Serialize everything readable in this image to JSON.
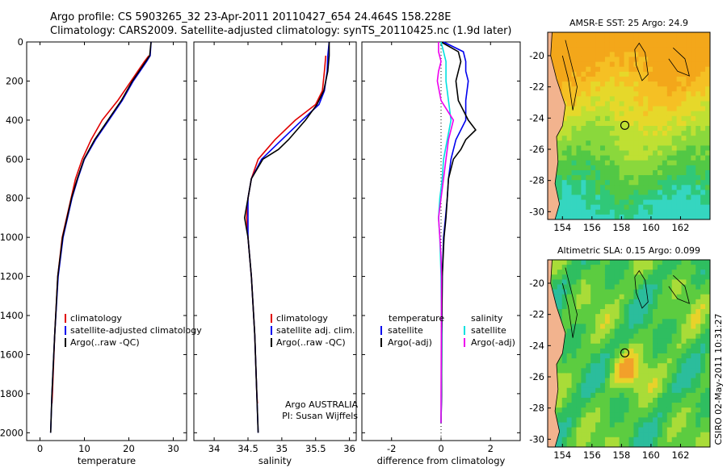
{
  "title_line1": "Argo profile: CS 5903265_32 23-Apr-2011 20110427_654 24.464S 158.228E",
  "title_line2": "Climatology: CARS2009. Satellite-adjusted climatology: synTS_20110425.nc (1.9d later)",
  "credit": "CSIRO 02-May-2011 10:31:27",
  "argo_note": [
    "Argo AUSTRALIA",
    "PI: Susan Wijffels"
  ],
  "colors": {
    "climatology": "#e00000",
    "satellite": "#0000ee",
    "argo": "#000000",
    "satellite_diff_sal": "#00e0e0",
    "argo_diff_sal": "#ee00ee"
  },
  "chart_data": [
    {
      "type": "line",
      "xlabel": "temperature",
      "xlim": [
        -3,
        33
      ],
      "xticks": [
        0,
        10,
        20,
        30
      ],
      "ylim": [
        2040,
        0
      ],
      "yticks": [
        0,
        200,
        400,
        600,
        800,
        1000,
        1200,
        1400,
        1600,
        1800,
        2000
      ],
      "legend_placement": "center-right",
      "series": [
        {
          "name": "climatology",
          "color": "#e00000",
          "depth": [
            70,
            100,
            150,
            200,
            300,
            400,
            500,
            600,
            700,
            800,
            1000,
            1200,
            1500,
            1800,
            1850
          ],
          "values": [
            24.5,
            23.5,
            22,
            20.5,
            17.5,
            14,
            11.5,
            9.5,
            8,
            7,
            5,
            4,
            3.3,
            2.8,
            2.7
          ]
        },
        {
          "name": "satellite-adjusted climatology",
          "color": "#0000ee",
          "depth": [
            0,
            70,
            100,
            150,
            200,
            300,
            400,
            500,
            600,
            700,
            800,
            1000,
            1200,
            1500,
            1800,
            2000
          ],
          "values": [
            25,
            24.8,
            24,
            22.5,
            21,
            18.5,
            15.5,
            12.5,
            10,
            8.5,
            7.2,
            5.2,
            4.1,
            3.3,
            2.7,
            2.4
          ]
        },
        {
          "name": "Argo(..raw -QC)",
          "color": "#000000",
          "depth": [
            0,
            70,
            100,
            150,
            200,
            300,
            400,
            500,
            600,
            700,
            800,
            1000,
            1200,
            1500,
            1800,
            2000
          ],
          "values": [
            25,
            24.7,
            23.8,
            22.3,
            20.8,
            18.3,
            15.3,
            12.3,
            9.9,
            8.4,
            7.1,
            5.1,
            4.0,
            3.3,
            2.7,
            2.4
          ]
        }
      ]
    },
    {
      "type": "line",
      "xlabel": "salinity",
      "xlim": [
        33.7,
        36.1
      ],
      "xticks": [
        34,
        34.5,
        35,
        35.5,
        36
      ],
      "ylim": [
        2040,
        0
      ],
      "legend_placement": "center-right",
      "series": [
        {
          "name": "climatology",
          "color": "#e00000",
          "depth": [
            70,
            150,
            250,
            320,
            400,
            500,
            600,
            700,
            800,
            900,
            1000,
            1200,
            1500,
            1800,
            1850
          ],
          "values": [
            35.65,
            35.63,
            35.6,
            35.5,
            35.2,
            34.9,
            34.65,
            34.55,
            34.5,
            34.48,
            34.5,
            34.55,
            34.6,
            34.63,
            34.64
          ]
        },
        {
          "name": "satellite adj. clim.",
          "color": "#0000ee",
          "depth": [
            0,
            70,
            150,
            250,
            320,
            400,
            500,
            600,
            700,
            800,
            900,
            1000,
            1200,
            1500,
            1800,
            2000
          ],
          "values": [
            35.7,
            35.68,
            35.67,
            35.63,
            35.55,
            35.3,
            35,
            34.7,
            34.55,
            34.5,
            34.5,
            34.5,
            34.55,
            34.6,
            34.63,
            34.65
          ]
        },
        {
          "name": "Argo(..raw -QC)",
          "color": "#000000",
          "depth": [
            0,
            70,
            150,
            250,
            320,
            400,
            500,
            550,
            600,
            700,
            800,
            900,
            1000,
            1200,
            1500,
            1800,
            2000
          ],
          "values": [
            35.7,
            35.7,
            35.68,
            35.62,
            35.52,
            35.35,
            35.1,
            34.95,
            34.72,
            34.55,
            34.5,
            34.45,
            34.5,
            34.55,
            34.6,
            34.63,
            34.65
          ]
        }
      ]
    },
    {
      "type": "line",
      "xlabel": "difference from climatology",
      "xlim": [
        -3.2,
        3.2
      ],
      "xticks": [
        -2,
        0,
        2
      ],
      "ylim": [
        2040,
        0
      ],
      "legend_groups": [
        "temperature",
        "salinity"
      ],
      "legend_placement": "center",
      "series": [
        {
          "name": "satellite",
          "group": "temperature",
          "color": "#0000ee",
          "depth": [
            0,
            50,
            100,
            150,
            200,
            300,
            400,
            500,
            600,
            700,
            800,
            900,
            1000,
            1200,
            1500,
            1800,
            1950
          ],
          "values": [
            0.1,
            0.9,
            1.0,
            1.0,
            1.1,
            1.0,
            1.0,
            0.6,
            0.4,
            0.3,
            0.25,
            0.18,
            0.1,
            0.05,
            0.03,
            0.02,
            0.0
          ]
        },
        {
          "name": "Argo(-adj)",
          "group": "temperature",
          "color": "#000000",
          "depth": [
            0,
            50,
            100,
            150,
            200,
            300,
            400,
            450,
            500,
            550,
            600,
            700,
            800,
            900,
            1000,
            1200,
            1500,
            1800,
            1950
          ],
          "values": [
            0.0,
            0.7,
            0.8,
            0.7,
            0.6,
            0.7,
            1.1,
            1.4,
            1.0,
            0.8,
            0.5,
            0.3,
            0.25,
            0.2,
            0.12,
            0.05,
            0.03,
            0.02,
            0.0
          ]
        },
        {
          "name": "satellite",
          "group": "salinity",
          "color": "#00e0e0",
          "depth": [
            0,
            50,
            100,
            200,
            300,
            400,
            500,
            600,
            700,
            800,
            900,
            1000,
            1200,
            1500,
            1800,
            1950
          ],
          "values": [
            0.0,
            0.1,
            0.2,
            0.2,
            0.3,
            0.4,
            0.25,
            0.1,
            0.05,
            -0.05,
            -0.1,
            -0.05,
            0.0,
            0.02,
            0.01,
            0.0
          ]
        },
        {
          "name": "Argo(-adj)",
          "group": "salinity",
          "color": "#ee00ee",
          "depth": [
            0,
            50,
            100,
            150,
            200,
            300,
            400,
            500,
            600,
            700,
            800,
            900,
            1000,
            1100,
            1200,
            1500,
            1800,
            1950
          ],
          "values": [
            -0.1,
            -0.1,
            0.0,
            -0.1,
            -0.15,
            0.0,
            0.5,
            0.3,
            0.2,
            0.1,
            0.0,
            -0.1,
            -0.05,
            0.0,
            0.02,
            0.01,
            0.0,
            0.0
          ]
        }
      ]
    },
    {
      "type": "heatmap",
      "title": "AMSR-E SST: 25 Argo: 24.9",
      "xticks": [
        154,
        156,
        158,
        160,
        162
      ],
      "yticks": [
        -20,
        -22,
        -24,
        -26,
        -28,
        -30
      ],
      "xlim": [
        153,
        164
      ],
      "ylim": [
        -30.5,
        -18.5
      ],
      "marker": [
        158.228,
        -24.464
      ]
    },
    {
      "type": "heatmap",
      "title": "Altimetric SLA: 0.15 Argo: 0.099",
      "xticks": [
        154,
        156,
        158,
        160,
        162
      ],
      "yticks": [
        -20,
        -22,
        -24,
        -26,
        -28,
        -30
      ],
      "xlim": [
        153,
        164
      ],
      "ylim": [
        -30.5,
        -18.5
      ],
      "marker": [
        158.228,
        -24.464
      ]
    }
  ]
}
